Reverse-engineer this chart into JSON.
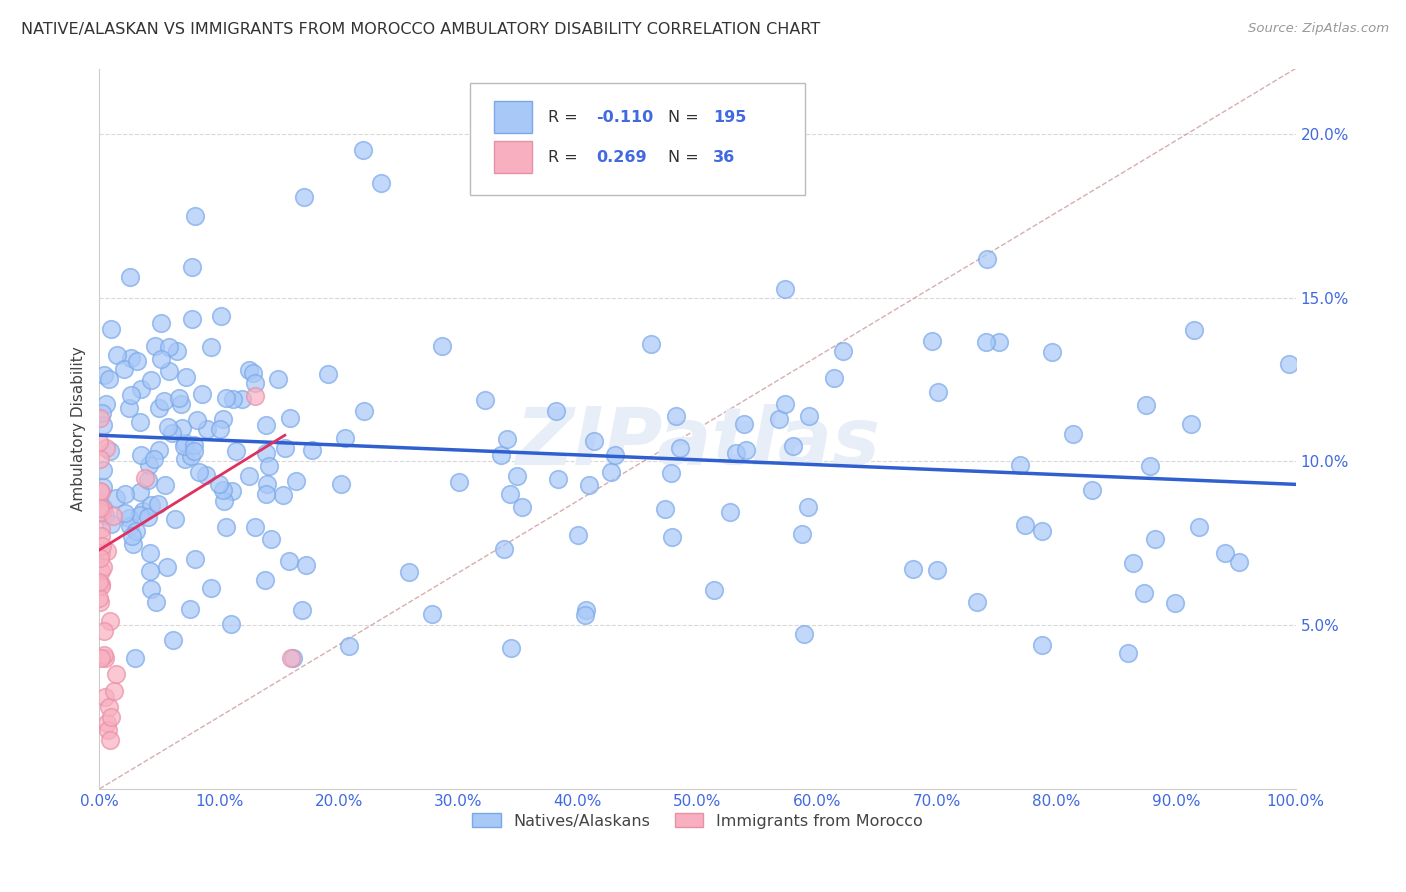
{
  "title": "NATIVE/ALASKAN VS IMMIGRANTS FROM MOROCCO AMBULATORY DISABILITY CORRELATION CHART",
  "source": "Source: ZipAtlas.com",
  "tick_color": "#4169e1",
  "ylabel": "Ambulatory Disability",
  "xlim": [
    0.0,
    1.0
  ],
  "ylim": [
    0.0,
    0.22
  ],
  "xtick_labels": [
    "0.0%",
    "10.0%",
    "20.0%",
    "30.0%",
    "40.0%",
    "50.0%",
    "60.0%",
    "70.0%",
    "80.0%",
    "90.0%",
    "100.0%"
  ],
  "ytick_labels": [
    "5.0%",
    "10.0%",
    "15.0%",
    "20.0%"
  ],
  "ytick_vals": [
    0.05,
    0.1,
    0.15,
    0.2
  ],
  "blue_fill": "#a8c8f8",
  "blue_edge": "#7aa8e8",
  "pink_fill": "#f8b0c0",
  "pink_edge": "#e890a8",
  "blue_line_color": "#3060d0",
  "pink_line_color": "#e03060",
  "diag_line_color": "#d0a0a0",
  "legend_R1": "-0.110",
  "legend_N1": "195",
  "legend_R2": "0.269",
  "legend_N2": "36",
  "legend_label1": "Natives/Alaskans",
  "legend_label2": "Immigrants from Morocco",
  "blue_line_y0": 0.108,
  "blue_line_y1": 0.093,
  "pink_line_x0": 0.0,
  "pink_line_x1": 0.155,
  "pink_line_y0": 0.073,
  "pink_line_y1": 0.108,
  "background_color": "#ffffff",
  "grid_color": "#d8d8d8",
  "watermark": "ZIPatlas",
  "watermark_color": "#e8eef8"
}
